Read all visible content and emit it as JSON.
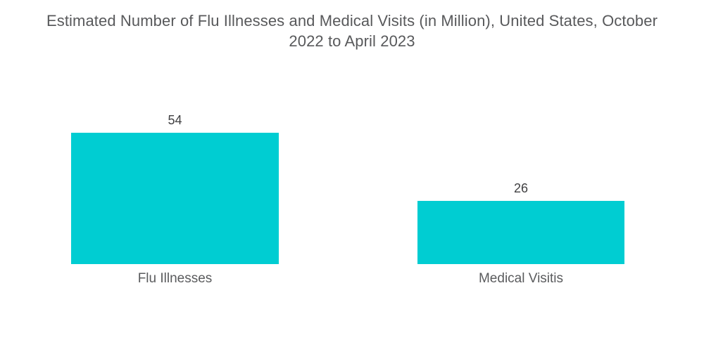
{
  "chart_data": {
    "type": "bar",
    "title": "Estimated Number of Flu Illnesses and Medical Visits (in Million), United States, October 2022 to April 2023",
    "title_lines": [
      "Estimated Number of Flu Illnesses and Medical Visits (in Million), United States, October",
      "2022 to April 2023"
    ],
    "categories": [
      "Flu Illnesses",
      "Medical Visitis"
    ],
    "values": [
      54,
      26
    ],
    "unit": "Million",
    "xlabel": "",
    "ylabel": "",
    "ylim": [
      0,
      60
    ],
    "grid": false,
    "axes_visible": false,
    "legend_position": "none",
    "bar_color": "#00CDD2",
    "background_color": "#FFFFFF",
    "title_color": "#58595B",
    "value_label_color": "#404042",
    "category_label_color": "#5A5B5D"
  }
}
